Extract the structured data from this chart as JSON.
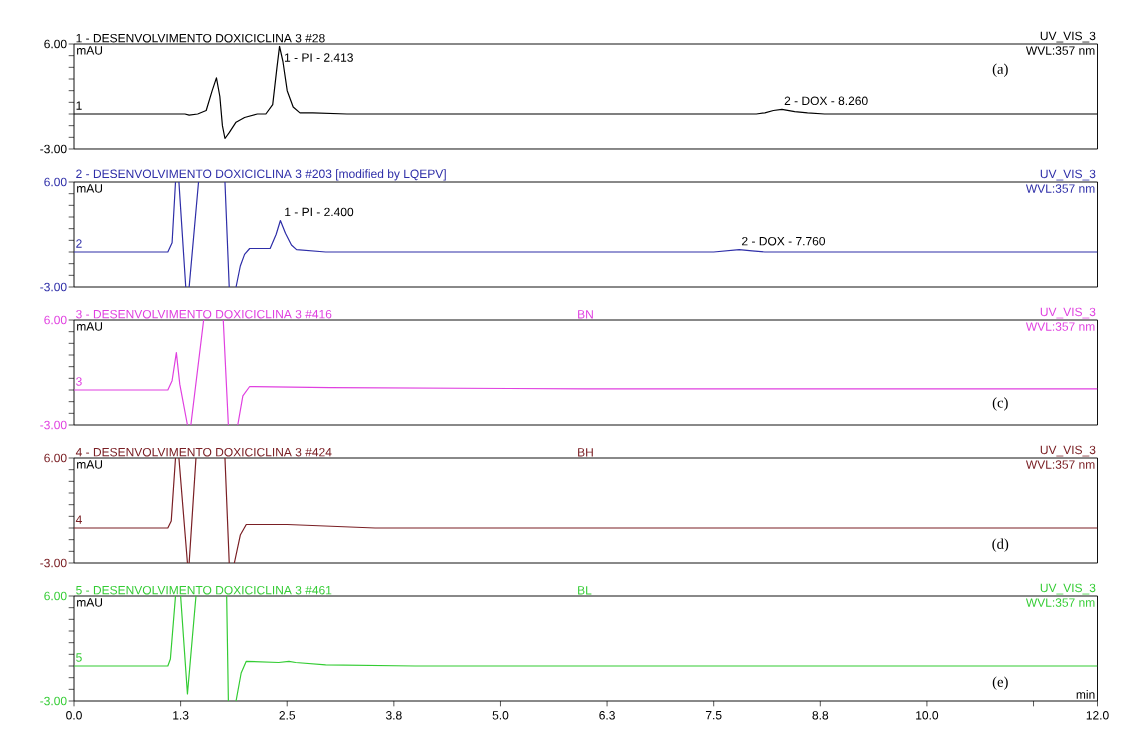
{
  "chart_data": [
    {
      "type": "line",
      "title": "1 - DESENVOLVIMENTO DOXICICLINA 3 #28",
      "subtitle": "UV_VIS_3",
      "ylabel": "mAU",
      "xlim": [
        0,
        12
      ],
      "ylim": [
        -3,
        6
      ],
      "tick_labels": "y",
      "yticks": [
        {
          "value": -3,
          "label": "-3.00"
        },
        {
          "value": -2,
          "label": null
        },
        {
          "value": -1,
          "label": null
        },
        {
          "value": 0,
          "label": null
        },
        {
          "value": 1,
          "label": null
        },
        {
          "value": 2,
          "label": null
        },
        {
          "value": 3,
          "label": null
        },
        {
          "value": 4,
          "label": null
        },
        {
          "value": 5,
          "label": null
        },
        {
          "value": 6,
          "label": "6.00"
        }
      ],
      "series": [
        {
          "color": "#000000",
          "x": [
            0,
            1.3,
            1.35,
            1.45,
            1.55,
            1.62,
            1.67,
            1.71,
            1.74,
            1.77,
            1.82,
            1.9,
            2.0,
            2.15,
            2.25,
            2.33,
            2.38,
            2.41,
            2.45,
            2.5,
            2.57,
            2.65,
            2.8,
            3.2,
            8.0,
            8.1,
            8.2,
            8.3,
            8.45,
            8.6,
            8.8,
            12
          ],
          "values": [
            0,
            0,
            -0.1,
            0,
            0.3,
            2.0,
            3.1,
            1.5,
            -1.0,
            -2.1,
            -1.6,
            -0.7,
            -0.3,
            0,
            0,
            0.8,
            4.0,
            5.8,
            4.5,
            2.0,
            0.6,
            0.1,
            0.1,
            0,
            0,
            0.1,
            0.3,
            0.4,
            0.2,
            0.1,
            0,
            0
          ]
        }
      ],
      "annotations": [
        "WVL:357 nm",
        "1",
        "(a)",
        {
          "text": "1 - PI - 2.413",
          "x": 2.413,
          "y": 5.8
        },
        {
          "text": "2 - DOX - 8.260",
          "x": 8.26,
          "y": 0.4
        }
      ]
    },
    {
      "type": "line",
      "title": "2 - DESENVOLVIMENTO DOXICICLINA 3 #203 [modified by LQEPV]",
      "subtitle": "UV_VIS_3",
      "ylabel": "mAU",
      "xlim": [
        0,
        12
      ],
      "ylim": [
        -3,
        6
      ],
      "tick_labels": "y",
      "yticks": [
        {
          "value": -3,
          "label": "-3.00"
        },
        {
          "value": -2,
          "label": null
        },
        {
          "value": -1,
          "label": null
        },
        {
          "value": 0,
          "label": null
        },
        {
          "value": 1,
          "label": null
        },
        {
          "value": 2,
          "label": null
        },
        {
          "value": 3,
          "label": null
        },
        {
          "value": 4,
          "label": null
        },
        {
          "value": 5,
          "label": null
        },
        {
          "value": 6,
          "label": "6.00"
        }
      ],
      "series": [
        {
          "color": "#2e2ea8",
          "x": [
            0,
            1.1,
            1.15,
            1.19,
            1.21,
            1.23,
            1.31,
            1.33,
            1.35,
            1.46,
            1.6,
            1.77,
            1.82,
            1.86,
            1.9,
            1.95,
            2.0,
            2.06,
            2.3,
            2.37,
            2.42,
            2.48,
            2.55,
            2.61,
            2.95,
            7.5,
            7.8,
            7.95,
            8.1,
            12
          ],
          "values": [
            0,
            0,
            0.8,
            6,
            null,
            6,
            -3,
            null,
            -3,
            6,
            null,
            6,
            -3,
            null,
            -3,
            -1.2,
            -0.2,
            0.3,
            0.3,
            1.5,
            2.7,
            1.6,
            0.6,
            0.2,
            0,
            0,
            0.2,
            0.1,
            0,
            0
          ]
        }
      ],
      "annotations": [
        "WVL:357 nm",
        "2",
        {
          "text": "1 - PI - 2.400",
          "x": 2.4,
          "y": 2.7
        },
        {
          "text": "2 - DOX - 7.760",
          "x": 7.76,
          "y": 0.2
        }
      ]
    },
    {
      "type": "line",
      "title": "3 - DESENVOLVIMENTO DOXICICLINA 3 #416",
      "subtitle": "UV_VIS_3",
      "ylabel": "mAU",
      "xlim": [
        0,
        12
      ],
      "ylim": [
        -3,
        6
      ],
      "tick_labels": "y",
      "yticks": [
        {
          "value": -3,
          "label": "-3.00"
        },
        {
          "value": -2,
          "label": null
        },
        {
          "value": -1,
          "label": null
        },
        {
          "value": 0,
          "label": null
        },
        {
          "value": 1,
          "label": null
        },
        {
          "value": 2,
          "label": null
        },
        {
          "value": 3,
          "label": null
        },
        {
          "value": 4,
          "label": null
        },
        {
          "value": 5,
          "label": null
        },
        {
          "value": 6,
          "label": "6.00"
        }
      ],
      "series": [
        {
          "color": "#e040e0",
          "x": [
            0,
            1.1,
            1.15,
            1.2,
            1.24,
            1.33,
            1.35,
            1.37,
            1.52,
            1.6,
            1.75,
            1.81,
            1.86,
            1.92,
            1.98,
            2.06,
            3.0,
            6,
            12
          ],
          "values": [
            0,
            0,
            0.8,
            3.2,
            0.5,
            -3,
            null,
            -3,
            6,
            null,
            6,
            -3,
            null,
            -3,
            -0.5,
            0.3,
            0.2,
            0.1,
            0.1
          ]
        }
      ],
      "annotations": [
        "WVL:357 nm",
        "3",
        "(c)",
        "BN"
      ]
    },
    {
      "type": "line",
      "title": "4 - DESENVOLVIMENTO DOXICICLINA 3 #424",
      "subtitle": "UV_VIS_3",
      "ylabel": "mAU",
      "xlim": [
        0,
        12
      ],
      "ylim": [
        -3,
        6
      ],
      "tick_labels": "y",
      "yticks": [
        {
          "value": -3,
          "label": "-3.00"
        },
        {
          "value": -2,
          "label": null
        },
        {
          "value": -1,
          "label": null
        },
        {
          "value": 0,
          "label": null
        },
        {
          "value": 1,
          "label": null
        },
        {
          "value": 2,
          "label": null
        },
        {
          "value": 3,
          "label": null
        },
        {
          "value": 4,
          "label": null
        },
        {
          "value": 5,
          "label": null
        },
        {
          "value": 6,
          "label": "6.00"
        }
      ],
      "series": [
        {
          "color": "#7a1f24",
          "x": [
            0,
            1.1,
            1.14,
            1.19,
            1.21,
            1.23,
            1.33,
            1.34,
            1.35,
            1.43,
            1.6,
            1.77,
            1.82,
            1.85,
            1.88,
            1.95,
            2.02,
            2.5,
            3.53,
            12
          ],
          "values": [
            0,
            0,
            0.6,
            6,
            null,
            6,
            -3,
            null,
            -3,
            6,
            null,
            6,
            -3,
            null,
            -3,
            -0.6,
            0.3,
            0.3,
            0,
            0
          ]
        }
      ],
      "annotations": [
        "WVL:357 nm",
        "4",
        "(d)",
        "BH"
      ]
    },
    {
      "type": "line",
      "title": "5 - DESENVOLVIMENTO DOXICICLINA 3 #461",
      "subtitle": "UV_VIS_3",
      "ylabel": "mAU",
      "xlabel": "min",
      "xlim": [
        0,
        12
      ],
      "ylim": [
        -3,
        6
      ],
      "xticks": [
        {
          "value": 0,
          "label": "0.0"
        },
        {
          "value": 1.25,
          "label": "1.3"
        },
        {
          "value": 2.5,
          "label": "2.5"
        },
        {
          "value": 3.75,
          "label": "3.8"
        },
        {
          "value": 5,
          "label": "5.0"
        },
        {
          "value": 6.25,
          "label": "6.3"
        },
        {
          "value": 7.5,
          "label": "7.5"
        },
        {
          "value": 8.75,
          "label": "8.8"
        },
        {
          "value": 10,
          "label": "10.0"
        },
        {
          "value": 11.25,
          "label": null
        },
        {
          "value": 12,
          "label": "12.0"
        }
      ],
      "yticks": [
        {
          "value": -3,
          "label": "-3.00"
        },
        {
          "value": -2,
          "label": null
        },
        {
          "value": -1,
          "label": null
        },
        {
          "value": 0,
          "label": null
        },
        {
          "value": 1,
          "label": null
        },
        {
          "value": 2,
          "label": null
        },
        {
          "value": 3,
          "label": null
        },
        {
          "value": 4,
          "label": null
        },
        {
          "value": 5,
          "label": null
        },
        {
          "value": 6,
          "label": "6.00"
        }
      ],
      "series": [
        {
          "color": "#33cc33",
          "x": [
            0,
            1.1,
            1.13,
            1.19,
            1.22,
            1.25,
            1.33,
            1.43,
            1.6,
            1.79,
            1.81,
            1.85,
            1.9,
            1.96,
            2.02,
            2.4,
            2.52,
            2.6,
            2.95,
            4,
            12
          ],
          "values": [
            0,
            0,
            0.6,
            6,
            null,
            6,
            -2.4,
            6,
            null,
            6,
            -3,
            null,
            -3,
            -0.6,
            0.4,
            0.3,
            0.4,
            0.3,
            0.1,
            0,
            0
          ]
        }
      ],
      "annotations": [
        "WVL:357 nm",
        "5",
        "(e)",
        "BL"
      ]
    }
  ]
}
